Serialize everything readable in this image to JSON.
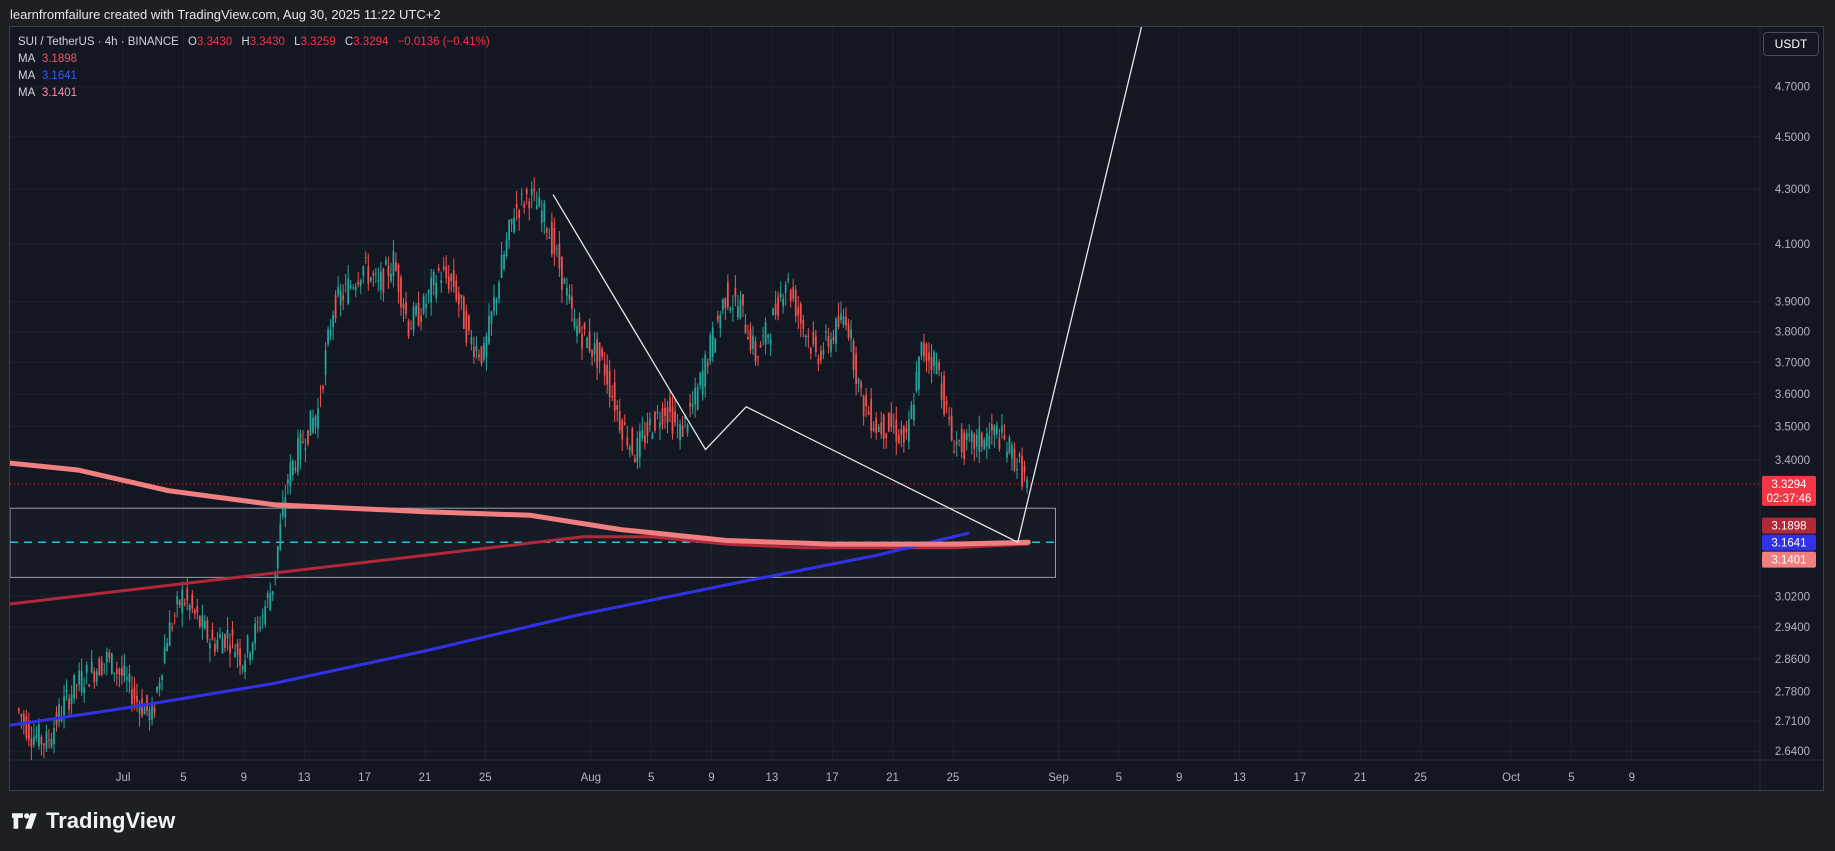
{
  "header": {
    "text": "learnfromfailure created with TradingView.com, Aug 30, 2025 11:22 UTC+2"
  },
  "legend": {
    "symbol": "SUI / TetherUS · 4h · BINANCE",
    "o_label": "O",
    "o": "3.3430",
    "h_label": "H",
    "h": "3.3430",
    "l_label": "L",
    "l": "3.3259",
    "c_label": "C",
    "c": "3.3294",
    "change": "−0.0136 (−0.41%)",
    "ma": [
      {
        "label": "MA",
        "value": "3.1898",
        "color": "#f7525f"
      },
      {
        "label": "MA",
        "value": "3.1641",
        "color": "#2962ff"
      },
      {
        "label": "MA",
        "value": "3.1401",
        "color": "#f48fb1"
      }
    ]
  },
  "currency_button": "USDT",
  "brand": "TradingView",
  "colors": {
    "up": "#26a69a",
    "down": "#ef5350",
    "ma1": "#b2283a",
    "ma2": "#3131e8",
    "ma3": "#f08080"
  },
  "chart_data": {
    "type": "candlestick",
    "symbol": "SUI / TetherUS",
    "interval": "4h",
    "exchange": "BINANCE",
    "y_scale": "log",
    "ylim": [
      2.62,
      4.95
    ],
    "y_ticks": [
      "4.7000",
      "4.5000",
      "4.3000",
      "4.1000",
      "3.9000",
      "3.8000",
      "3.7000",
      "3.6000",
      "3.5000",
      "3.4000",
      "3.0200",
      "2.9400",
      "2.8600",
      "2.7800",
      "2.7100",
      "2.6400"
    ],
    "y_tick_values": [
      4.7,
      4.5,
      4.3,
      4.1,
      3.9,
      3.8,
      3.7,
      3.6,
      3.5,
      3.4,
      3.02,
      2.94,
      2.86,
      2.78,
      2.71,
      2.64
    ],
    "x_ticks": [
      "Jul",
      "5",
      "9",
      "13",
      "17",
      "21",
      "25",
      "Aug",
      "5",
      "9",
      "13",
      "17",
      "21",
      "25",
      "Sep",
      "5",
      "9",
      "13",
      "17",
      "21",
      "25",
      "Oct",
      "5",
      "9"
    ],
    "x_tick_days": [
      0,
      4,
      8,
      12,
      16,
      20,
      24,
      31,
      35,
      39,
      43,
      47,
      51,
      55,
      62,
      66,
      70,
      74,
      78,
      82,
      86,
      92,
      96,
      100
    ],
    "x_range_days": [
      -7.5,
      108.5
    ],
    "last_price": "3.3294",
    "countdown": "02:37:46",
    "ma_values": [
      "3.1898",
      "3.1641",
      "3.1401"
    ],
    "daily_closes": [
      [
        -7,
        2.74
      ],
      [
        -6,
        2.68
      ],
      [
        -5,
        2.66
      ],
      [
        -4,
        2.74
      ],
      [
        -3,
        2.8
      ],
      [
        -2,
        2.83
      ],
      [
        -1,
        2.86
      ],
      [
        0,
        2.82
      ],
      [
        1,
        2.76
      ],
      [
        2,
        2.72
      ],
      [
        3,
        2.92
      ],
      [
        4,
        3.02
      ],
      [
        5,
        2.96
      ],
      [
        6,
        2.9
      ],
      [
        7,
        2.92
      ],
      [
        8,
        2.86
      ],
      [
        9,
        2.94
      ],
      [
        10,
        3.05
      ],
      [
        11,
        3.35
      ],
      [
        12,
        3.46
      ],
      [
        13,
        3.55
      ],
      [
        14,
        3.88
      ],
      [
        15,
        3.95
      ],
      [
        16,
        4.02
      ],
      [
        17,
        3.95
      ],
      [
        18,
        4.04
      ],
      [
        19,
        3.82
      ],
      [
        20,
        3.88
      ],
      [
        21,
        4.0
      ],
      [
        22,
        3.96
      ],
      [
        23,
        3.78
      ],
      [
        24,
        3.72
      ],
      [
        25,
        3.98
      ],
      [
        26,
        4.22
      ],
      [
        27,
        4.28
      ],
      [
        28,
        4.2
      ],
      [
        29,
        4.02
      ],
      [
        30,
        3.82
      ],
      [
        31,
        3.76
      ],
      [
        32,
        3.68
      ],
      [
        33,
        3.52
      ],
      [
        34,
        3.42
      ],
      [
        35,
        3.5
      ],
      [
        36,
        3.56
      ],
      [
        37,
        3.48
      ],
      [
        38,
        3.58
      ],
      [
        39,
        3.75
      ],
      [
        40,
        3.92
      ],
      [
        41,
        3.88
      ],
      [
        42,
        3.72
      ],
      [
        43,
        3.82
      ],
      [
        44,
        3.98
      ],
      [
        45,
        3.84
      ],
      [
        46,
        3.72
      ],
      [
        47,
        3.78
      ],
      [
        48,
        3.86
      ],
      [
        49,
        3.58
      ],
      [
        50,
        3.5
      ],
      [
        51,
        3.5
      ],
      [
        52,
        3.45
      ],
      [
        53,
        3.74
      ],
      [
        54,
        3.7
      ],
      [
        55,
        3.46
      ],
      [
        56,
        3.44
      ],
      [
        57,
        3.46
      ],
      [
        58,
        3.48
      ],
      [
        59,
        3.42
      ],
      [
        60,
        3.33
      ]
    ],
    "moving_averages": [
      {
        "name": "MA",
        "value": "3.1898",
        "points": [
          [
            -7.5,
            3.0
          ],
          [
            30.5,
            3.18
          ],
          [
            35,
            3.18
          ],
          [
            40,
            3.16
          ],
          [
            45,
            3.15
          ],
          [
            50,
            3.15
          ],
          [
            55,
            3.15
          ],
          [
            60,
            3.16
          ]
        ]
      },
      {
        "name": "MA",
        "value": "3.1641",
        "points": [
          [
            -7.5,
            2.7
          ],
          [
            0,
            2.74
          ],
          [
            10,
            2.8
          ],
          [
            20,
            2.88
          ],
          [
            30,
            2.97
          ],
          [
            40,
            3.05
          ],
          [
            50,
            3.13
          ],
          [
            56,
            3.19
          ]
        ]
      },
      {
        "name": "MA",
        "value": "3.1401",
        "points": [
          [
            -7.5,
            3.39
          ],
          [
            -3,
            3.37
          ],
          [
            3,
            3.31
          ],
          [
            10,
            3.27
          ],
          [
            20,
            3.25
          ],
          [
            27,
            3.24
          ],
          [
            33,
            3.2
          ],
          [
            40,
            3.17
          ],
          [
            47,
            3.16
          ],
          [
            55,
            3.16
          ],
          [
            60,
            3.165
          ]
        ]
      }
    ],
    "support_zone": [
      3.07,
      3.26
    ],
    "dashed_level": 3.165,
    "drawing_zigzag": [
      [
        28.5,
        4.28
      ],
      [
        38.6,
        3.43
      ],
      [
        41.3,
        3.56
      ],
      [
        59.3,
        3.165
      ],
      [
        67.5,
        4.95
      ]
    ]
  }
}
